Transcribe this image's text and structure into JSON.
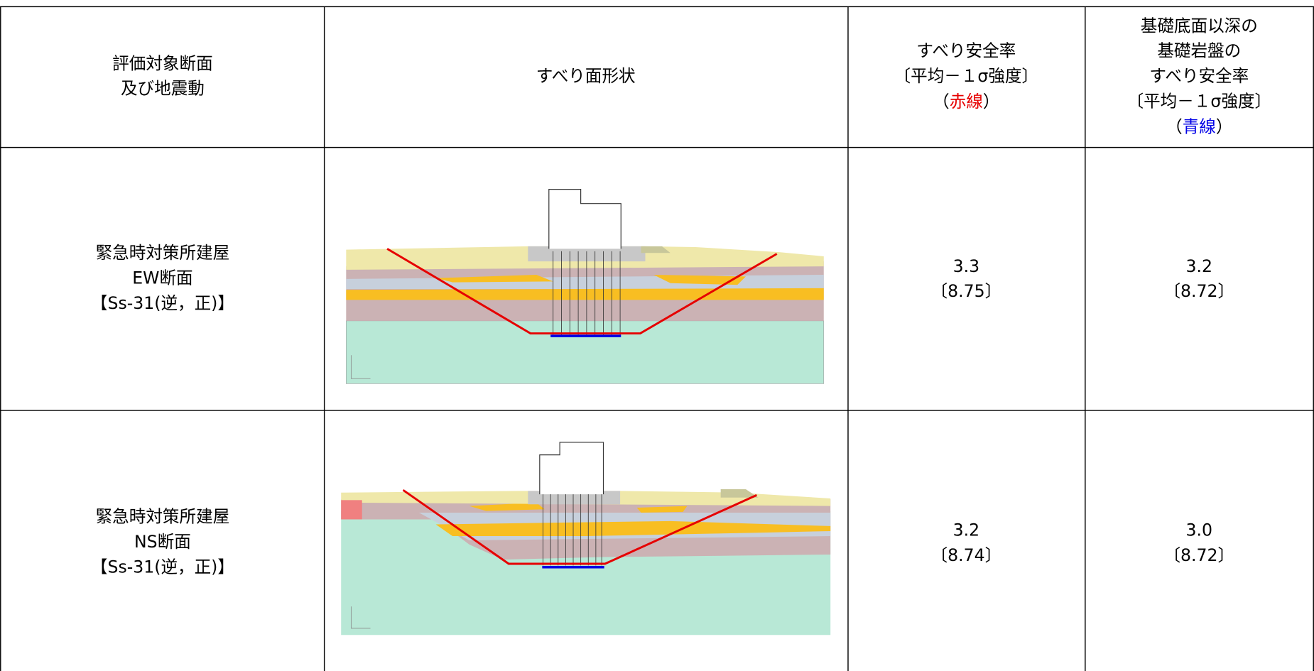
{
  "header": {
    "columns": [
      {
        "lines": [
          "評価対象断面",
          "及び地震動"
        ]
      },
      {
        "lines": [
          "すべり面形状"
        ]
      },
      {
        "lines": [
          "すべり安全率",
          "〔平均－１σ強度〕"
        ],
        "note": [
          "（",
          "赤線",
          "）"
        ],
        "note_color": "#e60000"
      },
      {
        "lines": [
          "基礎底面以深の",
          "基礎岩盤の",
          "すべり安全率",
          "〔平均－１σ強度〕"
        ],
        "note": [
          "（",
          "青線",
          "）"
        ],
        "note_color": "#0000e6"
      }
    ]
  },
  "rows": [
    {
      "label": [
        "緊急時対策所建屋",
        "EW断面",
        "【Ss-31(逆，正)】"
      ],
      "safety": {
        "value": "3.3",
        "detail": "〔8.75〕"
      },
      "base_safety": {
        "value": "3.2",
        "detail": "〔8.72〕"
      }
    },
    {
      "label": [
        "緊急時対策所建屋",
        "NS断面",
        "【Ss-31(逆，正)】"
      ],
      "safety": {
        "value": "3.2",
        "detail": "〔8.74〕"
      },
      "base_safety": {
        "value": "3.0",
        "detail": "〔8.72〕"
      }
    }
  ]
}
